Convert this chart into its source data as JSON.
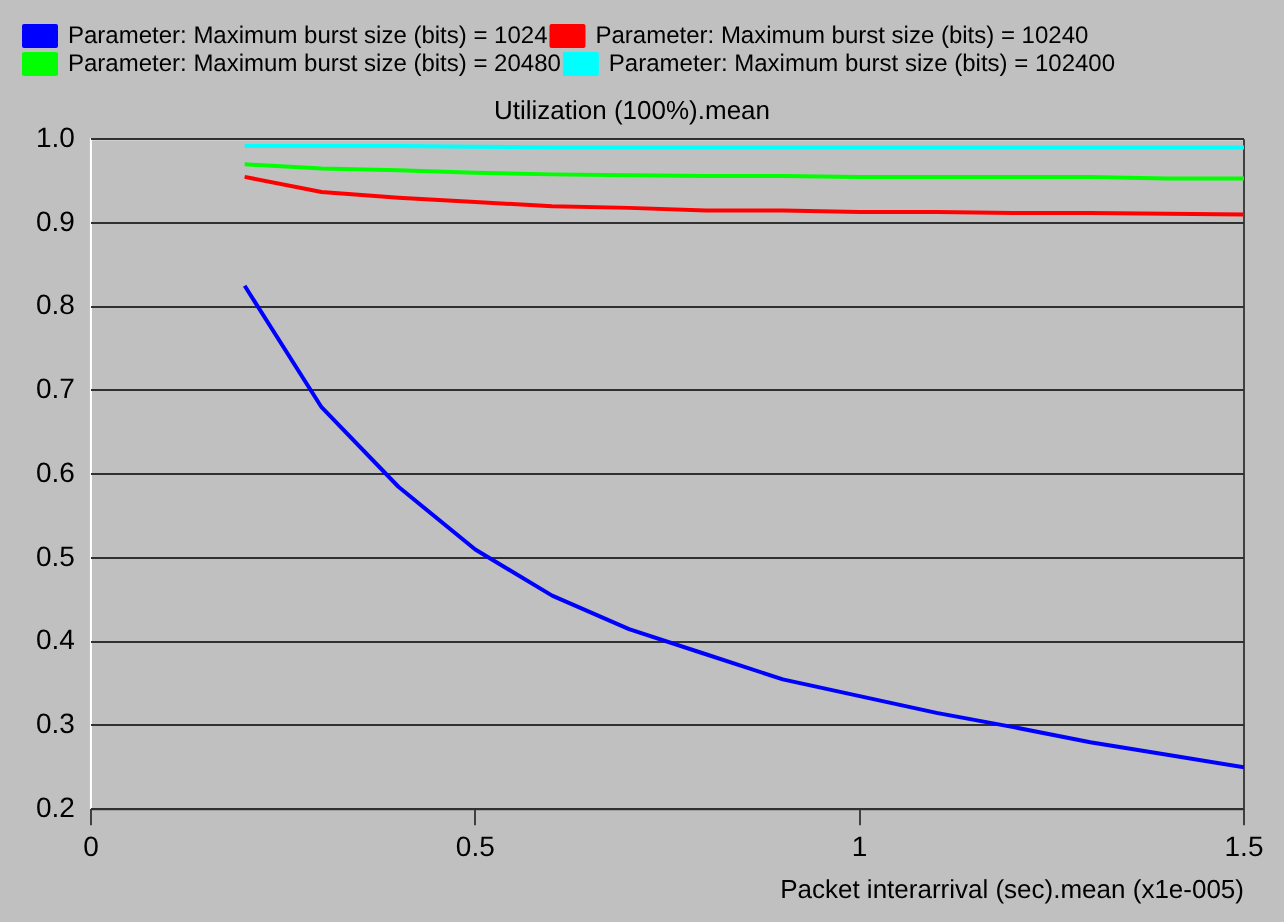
{
  "chart_data": {
    "type": "line",
    "ylabel": "Utilization (100%).mean",
    "xlabel": "Packet interarrival (sec).mean (x1e-005)",
    "x": [
      0.2,
      0.3,
      0.4,
      0.5,
      0.6,
      0.7,
      0.8,
      0.9,
      1.0,
      1.1,
      1.2,
      1.3,
      1.4,
      1.5
    ],
    "series": [
      {
        "name": "Parameter: Maximum burst size (bits) = 1024",
        "color": "#0000ff",
        "values": [
          0.825,
          0.68,
          0.585,
          0.51,
          0.455,
          0.415,
          0.385,
          0.355,
          0.335,
          0.315,
          0.298,
          0.28,
          0.265,
          0.25
        ]
      },
      {
        "name": "Parameter: Maximum burst size (bits) = 10240",
        "color": "#ff0000",
        "values": [
          0.955,
          0.937,
          0.93,
          0.925,
          0.92,
          0.918,
          0.915,
          0.915,
          0.913,
          0.913,
          0.912,
          0.912,
          0.911,
          0.91
        ]
      },
      {
        "name": "Parameter: Maximum burst size (bits) = 20480",
        "color": "#00ff00",
        "values": [
          0.97,
          0.965,
          0.963,
          0.96,
          0.958,
          0.957,
          0.956,
          0.956,
          0.955,
          0.955,
          0.955,
          0.955,
          0.953,
          0.953
        ]
      },
      {
        "name": "Parameter: Maximum burst size (bits) = 102400",
        "color": "#00ffff",
        "values": [
          0.992,
          0.992,
          0.992,
          0.991,
          0.99,
          0.99,
          0.99,
          0.99,
          0.99,
          0.99,
          0.99,
          0.99,
          0.99,
          0.99
        ]
      }
    ],
    "xlim": [
      0,
      1.5
    ],
    "xticks": [
      0,
      0.5,
      1,
      1.5
    ],
    "ylim": [
      0.2,
      1.0
    ],
    "yticks": [
      0.2,
      0.3,
      0.4,
      0.5,
      0.6,
      0.7,
      0.8,
      0.9,
      {
        "value": 1.0,
        "label": "1.0"
      }
    ],
    "grid": "y",
    "legend": "top left",
    "marker": "none",
    "line_style": "solid"
  }
}
